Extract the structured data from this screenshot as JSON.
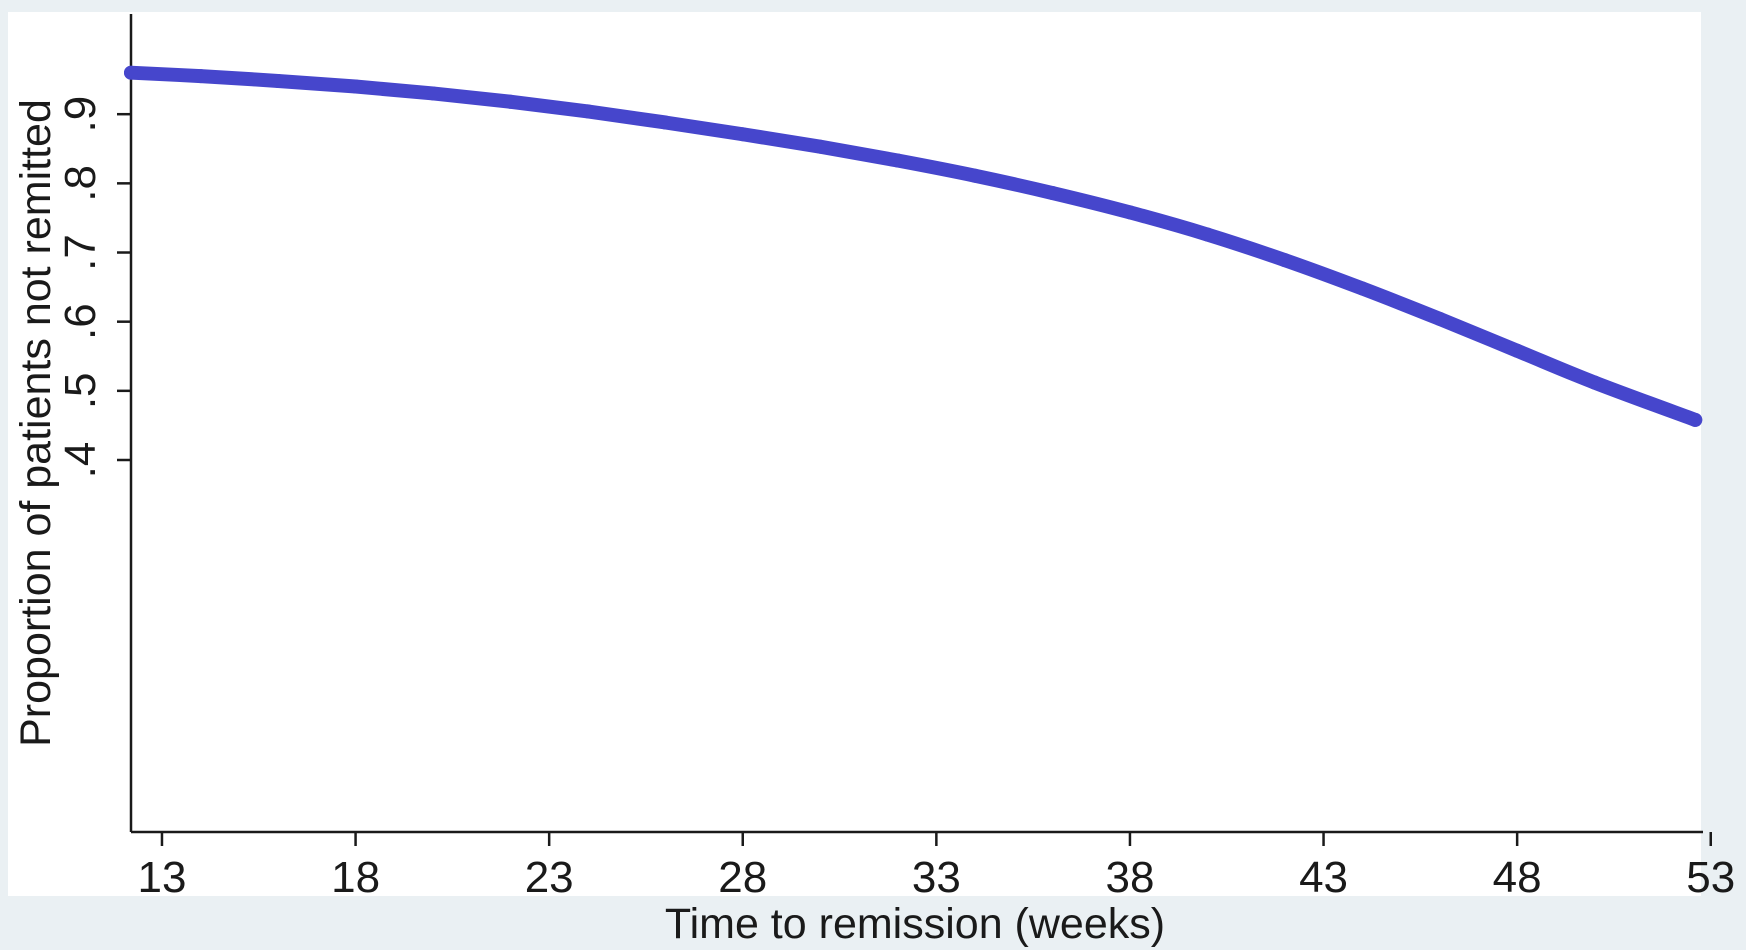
{
  "chart_data": {
    "type": "line",
    "xlabel": "Time to remission (weeks)",
    "ylabel": "Proportion of patients not remitted",
    "xlim": [
      12.2,
      52.8
    ],
    "ylim": [
      0.4,
      0.961
    ],
    "x_ticks": [
      13,
      18,
      23,
      28,
      33,
      38,
      43,
      48,
      53
    ],
    "y_ticks": [
      0.4,
      0.5,
      0.6,
      0.7,
      0.8,
      0.9
    ],
    "y_tick_labels": [
      ".4",
      ".5",
      ".6",
      ".7",
      ".8",
      ".9"
    ],
    "grid": false,
    "series": [
      {
        "color": "#4646cc",
        "x": [
          12.2,
          14,
          16,
          18,
          20,
          22,
          24,
          26,
          28,
          30,
          32,
          34,
          36,
          38,
          40,
          42,
          44,
          46,
          48,
          50,
          52.6
        ],
        "y": [
          0.96,
          0.955,
          0.948,
          0.94,
          0.93,
          0.918,
          0.904,
          0.888,
          0.871,
          0.853,
          0.833,
          0.811,
          0.786,
          0.758,
          0.726,
          0.689,
          0.648,
          0.604,
          0.558,
          0.512,
          0.458
        ]
      }
    ]
  }
}
